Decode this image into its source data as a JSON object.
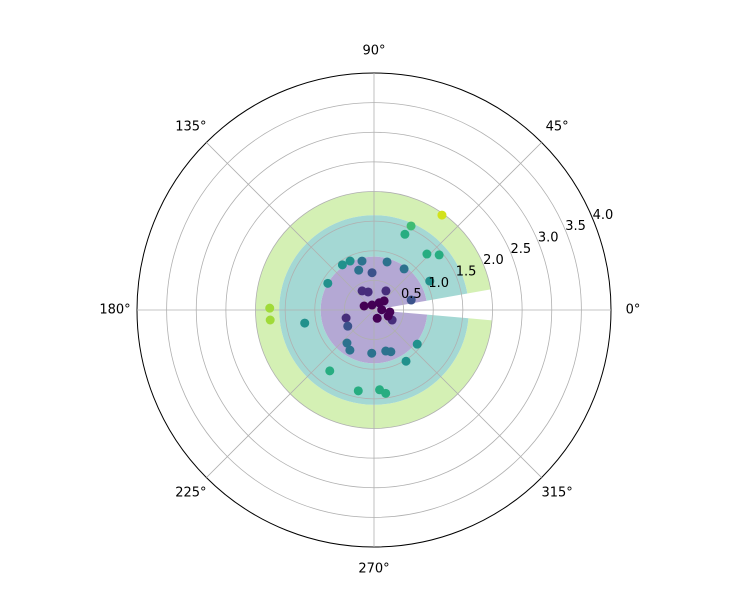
{
  "chart_data": {
    "type": "polar-scatter",
    "rlim": [
      0,
      4
    ],
    "rticks": [
      0.5,
      {
        "value": 1.0,
        "label": "1.0"
      },
      1.5,
      {
        "value": 2.0,
        "label": "2.0"
      },
      2.5,
      {
        "value": 3.0,
        "label": "3.0"
      },
      3.5,
      {
        "value": 4.0,
        "label": "4.0"
      }
    ],
    "thetaticks": [
      {
        "value": 0,
        "label": "0°"
      },
      {
        "value": 45,
        "label": "45°"
      },
      {
        "value": 90,
        "label": "90°"
      },
      {
        "value": 135,
        "label": "135°"
      },
      {
        "value": 180,
        "label": "180°"
      },
      {
        "value": 225,
        "label": "225°"
      },
      {
        "value": 270,
        "label": "270°"
      },
      {
        "value": 315,
        "label": "315°"
      }
    ],
    "grid": true,
    "fills": [
      {
        "color": "#d4f0b4",
        "r": [
          1.6,
          2.0
        ],
        "theta": [
          10,
          355
        ]
      },
      {
        "color": "#a4d8d4",
        "r": [
          0.9,
          1.6
        ],
        "theta": [
          10,
          355
        ]
      },
      {
        "color": "#b4a8d4",
        "r": [
          0,
          0.9
        ],
        "theta": [
          10,
          355
        ]
      }
    ],
    "points": {
      "theta": [
        54.4,
        66.2,
        67.8,
        46.6,
        40.2,
        27.4,
        15,
        53.8,
        74.8,
        93,
        103.8,
        116,
        125,
        111,
        150,
        122,
        108,
        58,
        42,
        54,
        158,
        112,
        179,
        185.5,
        190.7,
        196,
        211.6,
        230.7,
        239,
        234,
        259,
        274,
        278,
        267,
        286,
        292,
        302,
        321.7,
        331,
        337,
        291,
        2,
        353
      ],
      "r": [
        1.97,
        1.55,
        1.38,
        1.3,
        1.44,
        1.06,
        0.65,
        0.86,
        0.84,
        0.63,
        0.85,
        0.92,
        0.93,
        0.72,
        0.9,
        0.38,
        0.32,
        0.38,
        0.23,
        0.15,
        0.18,
        0.09,
        1.76,
        1.76,
        1.19,
        0.49,
        0.52,
        0.72,
        0.79,
        1.27,
        1.39,
        1.35,
        1.42,
        0.73,
        0.72,
        0.76,
        1.02,
        0.93,
        0.35,
        0.26,
        0.15,
        0.13,
        0.27
      ],
      "colors": [
        "#d2e21b",
        "#3fbc73",
        "#27ad81",
        "#27ad81",
        "#27ad81",
        "#21918c",
        "#3b528b",
        "#2c728e",
        "#2c728e",
        "#3b528b",
        "#2c728e",
        "#21918c",
        "#21918c",
        "#2c728e",
        "#21918c",
        "#472d7b",
        "#472d7b",
        "#472d7b",
        "#440154",
        "#440154",
        "#440154",
        "#440154",
        "#a0da39",
        "#a0da39",
        "#21918c",
        "#472d7b",
        "#3b528b",
        "#2c728e",
        "#2c728e",
        "#27ad81",
        "#27ad81",
        "#27ad81",
        "#27ad81",
        "#2c728e",
        "#2c728e",
        "#2c728e",
        "#21918c",
        "#21918c",
        "#472d7b",
        "#440154",
        "#440154",
        "#440154",
        "#440154"
      ]
    }
  }
}
